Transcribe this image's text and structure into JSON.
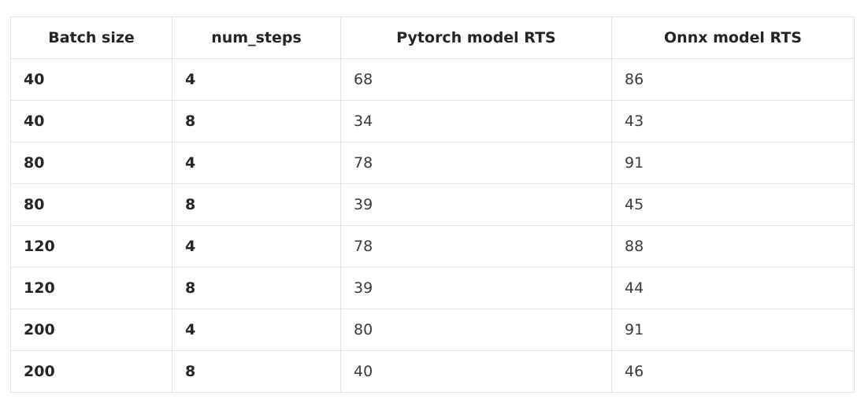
{
  "table": {
    "headers": [
      "Batch size",
      "num_steps",
      "Pytorch model RTS",
      "Onnx model RTS"
    ],
    "rows": [
      [
        "40",
        "4",
        "68",
        "86"
      ],
      [
        "40",
        "8",
        "34",
        "43"
      ],
      [
        "80",
        "4",
        "78",
        "91"
      ],
      [
        "80",
        "8",
        "39",
        "45"
      ],
      [
        "120",
        "4",
        "78",
        "88"
      ],
      [
        "120",
        "8",
        "39",
        "44"
      ],
      [
        "200",
        "4",
        "80",
        "91"
      ],
      [
        "200",
        "8",
        "40",
        "46"
      ]
    ]
  }
}
